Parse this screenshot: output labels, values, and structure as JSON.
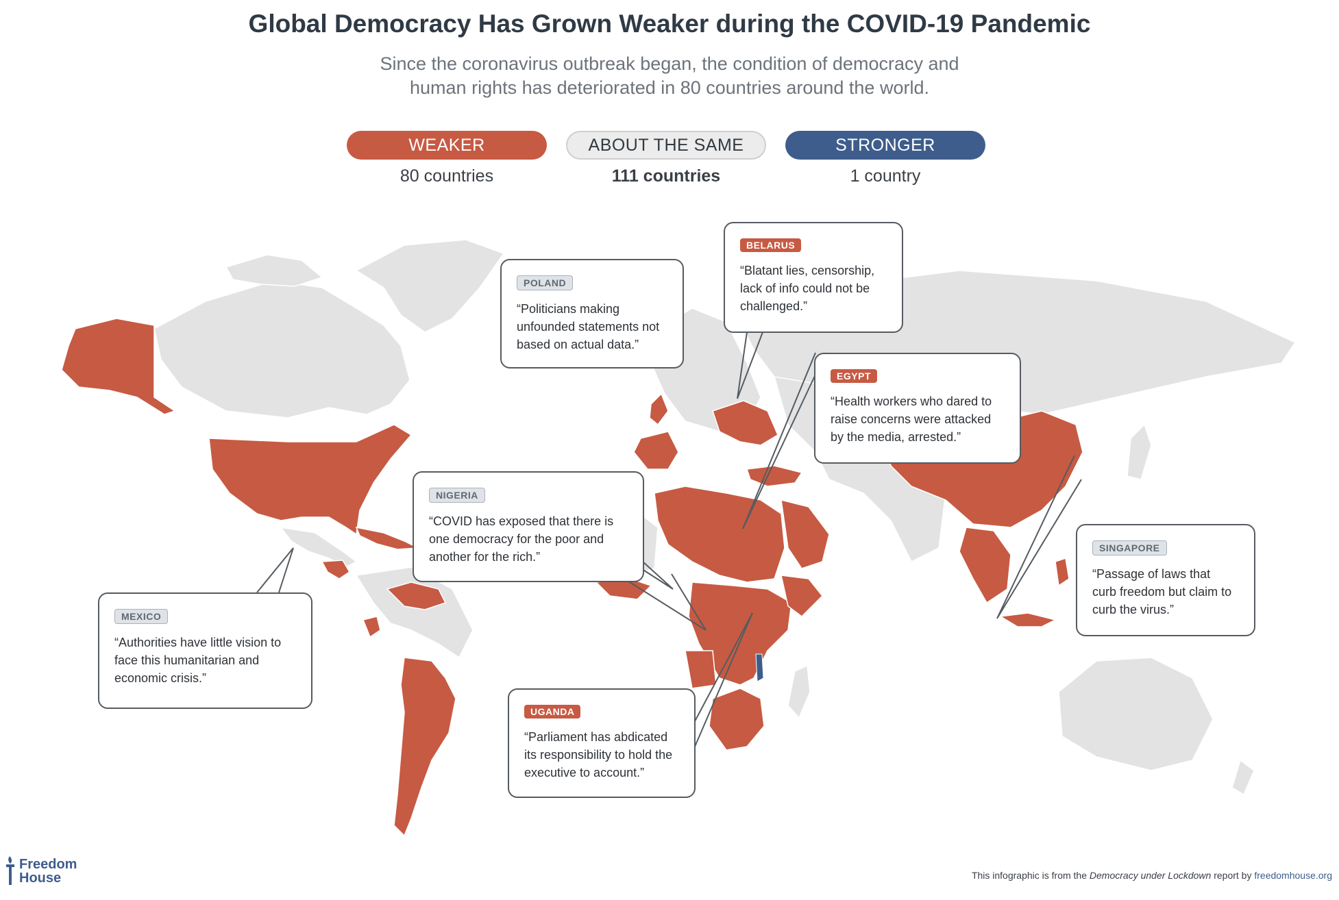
{
  "title": "Global Democracy Has Grown Weaker during the COVID-19 Pandemic",
  "subtitle": {
    "line1": "Since the coronavirus outbreak began, the condition of democracy and",
    "line2": "human rights has deteriorated in 80 countries around the world."
  },
  "legend": {
    "weaker": {
      "label": "WEAKER",
      "count": "80 countries"
    },
    "same": {
      "label": "ABOUT THE SAME",
      "count": "111 countries"
    },
    "stronger": {
      "label": "STRONGER",
      "count": "1 country"
    }
  },
  "colors": {
    "weaker": "#c75a43",
    "same": "#e3e3e3",
    "stronger": "#3e5d8c",
    "border": "#ffffff"
  },
  "callouts": {
    "poland": {
      "tag": "POLAND",
      "quote": "“Politicians making unfounded statements not based on actual data.”"
    },
    "belarus": {
      "tag": "BELARUS",
      "quote": "“Blatant lies, censorship, lack of info could not be challenged.”"
    },
    "egypt": {
      "tag": "EGYPT",
      "quote": "“Health workers who dared to raise concerns were attacked by the media, arrested.”"
    },
    "nigeria": {
      "tag": "NIGERIA",
      "quote": "“COVID has exposed that there is one democracy for the poor and another for the rich.”"
    },
    "singapore": {
      "tag": "SINGAPORE",
      "quote": "“Passage of laws that curb freedom but claim to curb the virus.”"
    },
    "mexico": {
      "tag": "MEXICO",
      "quote": "“Authorities have little vision to face this humanitarian and economic crisis.”"
    },
    "uganda": {
      "tag": "UGANDA",
      "quote": "“Parliament has abdicated its responsibility to hold the executive to account.”"
    }
  },
  "logo": {
    "line1": "Freedom",
    "line2": "House"
  },
  "footer": {
    "prefix": "This infographic is from the ",
    "report": "Democracy under Lockdown",
    "middle": " report by ",
    "site": "freedomhouse.org"
  }
}
